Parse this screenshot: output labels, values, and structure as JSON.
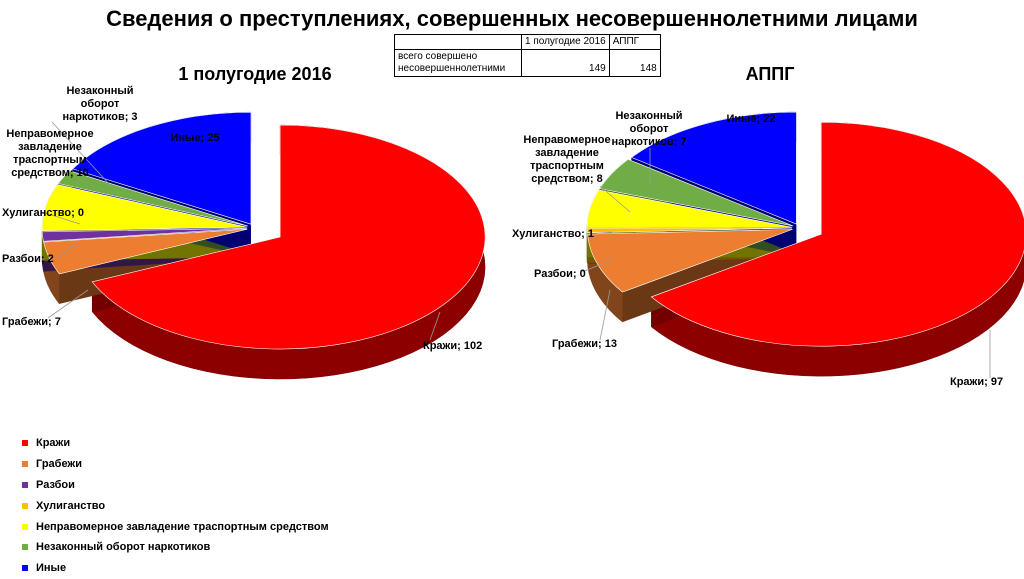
{
  "title": "Сведения о преступлениях, совершенных несовершеннолетними лицами",
  "table": {
    "headers": [
      "",
      "1 полугодие 2016",
      "АППГ"
    ],
    "row": {
      "label_line1": "всего совершено",
      "label_line2": "несовершеннолетними",
      "values": [
        "149",
        "148"
      ]
    }
  },
  "chart_data": [
    {
      "type": "pie",
      "title": "1 полугодие 2016",
      "categories": [
        "Кражи",
        "Грабежи",
        "Разбои",
        "Хулиганство",
        "Неправомерное завладение траспортным средством",
        "Незаконный оборот наркотиков",
        "Иные"
      ],
      "values": [
        102,
        7,
        2,
        0,
        10,
        3,
        25
      ],
      "labels": [
        "Кражи; 102",
        "Грабежи; 7",
        "Разбои; 2",
        "Хулиганство; 0",
        "Неправомерное завладение траспортным средством; 10",
        "Незаконный оборот наркотиков; 3",
        "Иные; 25"
      ]
    },
    {
      "type": "pie",
      "title": "АППГ",
      "categories": [
        "Кражи",
        "Грабежи",
        "Разбои",
        "Хулиганство",
        "Неправомерное завладение траспортным средством",
        "Незаконный оборот наркотиков",
        "Иные"
      ],
      "values": [
        97,
        13,
        0,
        1,
        8,
        7,
        22
      ],
      "labels": [
        "Кражи; 97",
        "Грабежи; 13",
        "Разбои; 0",
        "Хулиганство; 1",
        "Неправомерное завладение траспортным средством; 8",
        "Незаконный оборот наркотиков; 7",
        "Иные; 22"
      ]
    }
  ],
  "colors": [
    "#ff0000",
    "#ed7d31",
    "#7030a0",
    "#ffc000",
    "#ffff00",
    "#70ad47",
    "#0000ff"
  ],
  "legend": [
    "Кражи",
    "Грабежи",
    "Разбои",
    "Хулиганство",
    "Неправомерное завладение траспортным средством",
    "Незаконный оборот наркотиков",
    "Иные"
  ]
}
